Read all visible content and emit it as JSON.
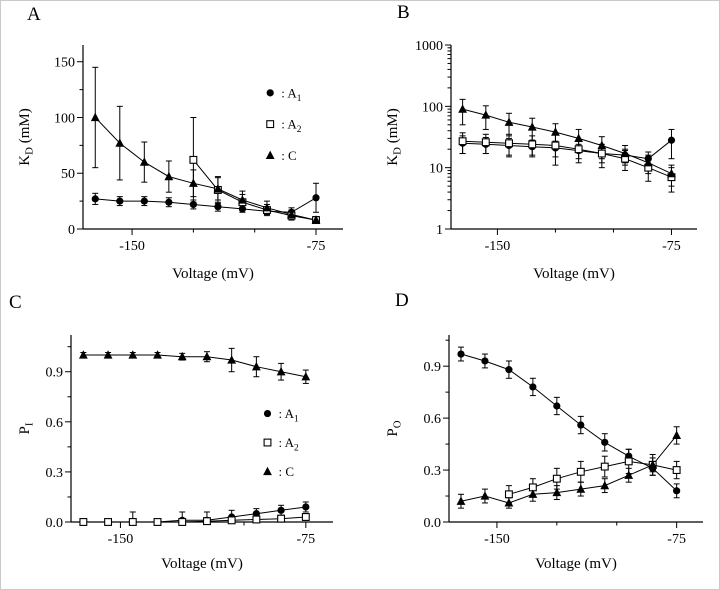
{
  "chart_data": [
    {
      "panel": "A",
      "type": "line",
      "xlabel": "Voltage (mV)",
      "ylabel_segments": [
        {
          "t": "K"
        },
        {
          "t": "D",
          "sub": true
        },
        {
          "t": " (mM)"
        }
      ],
      "yscale": "linear",
      "xlim": [
        -170,
        -64
      ],
      "ylim": [
        0,
        165
      ],
      "xticks": [
        -150,
        -75
      ],
      "xtick_labels": [
        "-150",
        "-75"
      ],
      "xminor": [
        -125,
        -100
      ],
      "yticks": [
        0,
        50,
        100,
        150
      ],
      "ytick_labels": [
        "0",
        "50",
        "100",
        "150"
      ],
      "yminor": [
        25,
        75,
        125
      ],
      "series": [
        {
          "name": "A1",
          "marker": "filled-circle",
          "x": [
            -165,
            -155,
            -145,
            -135,
            -125,
            -115,
            -105,
            -95,
            -85,
            -75
          ],
          "y": [
            27,
            25,
            25,
            24,
            22,
            20,
            18,
            16,
            15,
            28
          ],
          "err": [
            5,
            4,
            4,
            4,
            4,
            4,
            3,
            3,
            4,
            13
          ]
        },
        {
          "name": "A2",
          "marker": "open-square",
          "x": [
            -125,
            -115,
            -105,
            -95,
            -85,
            -75
          ],
          "y": [
            62,
            35,
            24,
            17,
            12,
            8
          ],
          "err": [
            38,
            12,
            7,
            5,
            4,
            3
          ]
        },
        {
          "name": "C",
          "marker": "filled-triangle",
          "x": [
            -165,
            -155,
            -145,
            -135,
            -125,
            -115,
            -105,
            -95,
            -85,
            -75
          ],
          "y": [
            100,
            77,
            60,
            47,
            41,
            36,
            26,
            19,
            13,
            8
          ],
          "err": [
            45,
            33,
            18,
            14,
            12,
            10,
            8,
            6,
            4,
            3
          ]
        }
      ],
      "legend_items": [
        {
          "marker": "filled-circle",
          "label_segments": [
            {
              "t": ": A"
            },
            {
              "t": "1",
              "sub": true
            }
          ]
        },
        {
          "marker": "open-square",
          "label_segments": [
            {
              "t": ": A"
            },
            {
              "t": "2",
              "sub": true
            }
          ]
        },
        {
          "marker": "filled-triangle",
          "label_segments": [
            {
              "t": ": C"
            }
          ]
        }
      ]
    },
    {
      "panel": "B",
      "type": "line",
      "xlabel": "Voltage (mV)",
      "ylabel_segments": [
        {
          "t": "K"
        },
        {
          "t": "D",
          "sub": true
        },
        {
          "t": " (mM)"
        }
      ],
      "yscale": "log",
      "xlim": [
        -170,
        -64
      ],
      "ylim": [
        1,
        1000
      ],
      "xticks": [
        -150,
        -75
      ],
      "xtick_labels": [
        "-150",
        "-75"
      ],
      "xminor": [
        -125,
        -100
      ],
      "yticks": [
        1,
        10,
        100,
        1000
      ],
      "ytick_labels": [
        "1",
        "10",
        "100",
        "1000"
      ],
      "yminor": [],
      "series": [
        {
          "name": "A1",
          "marker": "filled-circle",
          "x": [
            -165,
            -155,
            -145,
            -135,
            -125,
            -115,
            -105,
            -95,
            -85,
            -75
          ],
          "y": [
            25,
            24,
            23,
            22,
            21,
            19,
            17,
            16,
            14,
            28
          ],
          "err": [
            8,
            7,
            7,
            6,
            6,
            5,
            5,
            4,
            4,
            14
          ]
        },
        {
          "name": "A2",
          "marker": "open-square",
          "x": [
            -165,
            -155,
            -145,
            -135,
            -125,
            -115,
            -105,
            -95,
            -85,
            -75
          ],
          "y": [
            27,
            26,
            25,
            24,
            23,
            20,
            17,
            14,
            10,
            7
          ],
          "err": [
            10,
            9,
            10,
            9,
            12,
            8,
            7,
            5,
            4,
            3
          ]
        },
        {
          "name": "C",
          "marker": "filled-triangle",
          "x": [
            -165,
            -155,
            -145,
            -135,
            -125,
            -115,
            -105,
            -95,
            -85,
            -75
          ],
          "y": [
            90,
            72,
            55,
            46,
            38,
            30,
            23,
            17,
            12,
            8
          ],
          "err": [
            40,
            30,
            22,
            18,
            14,
            12,
            9,
            6,
            4,
            3
          ]
        }
      ]
    },
    {
      "panel": "C",
      "type": "line",
      "xlabel": "Voltage (mV)",
      "ylabel_segments": [
        {
          "t": "P"
        },
        {
          "t": "I",
          "sub": true
        }
      ],
      "yscale": "linear",
      "xlim": [
        -170,
        -64
      ],
      "ylim": [
        0,
        1.12
      ],
      "xticks": [
        -150,
        -75
      ],
      "xtick_labels": [
        "-150",
        "-75"
      ],
      "xminor": [
        -125,
        -100
      ],
      "yticks": [
        0,
        0.3,
        0.6,
        0.9
      ],
      "ytick_labels": [
        "0.0",
        "0.3",
        "0.6",
        "0.9"
      ],
      "yminor": [
        0.15,
        0.45,
        0.75,
        1.05
      ],
      "series": [
        {
          "name": "A1",
          "marker": "filled-circle",
          "x": [
            -165,
            -155,
            -145,
            -135,
            -125,
            -115,
            -105,
            -95,
            -85,
            -75
          ],
          "y": [
            0.0,
            0.0,
            0.0,
            0.0,
            0.01,
            0.01,
            0.03,
            0.05,
            0.07,
            0.09
          ],
          "err": [
            0.01,
            0.01,
            0.06,
            0.01,
            0.05,
            0.05,
            0.04,
            0.03,
            0.03,
            0.03
          ]
        },
        {
          "name": "A2",
          "marker": "open-square",
          "x": [
            -165,
            -155,
            -145,
            -135,
            -125,
            -115,
            -105,
            -95,
            -85,
            -75
          ],
          "y": [
            0.0,
            0.0,
            0.0,
            0.0,
            0.0,
            0.005,
            0.01,
            0.015,
            0.02,
            0.03
          ],
          "err": [
            0.005,
            0.005,
            0.005,
            0.005,
            0.01,
            0.02,
            0.02,
            0.02,
            0.02,
            0.02
          ]
        },
        {
          "name": "C",
          "marker": "filled-triangle",
          "x": [
            -165,
            -155,
            -145,
            -135,
            -125,
            -115,
            -105,
            -95,
            -85,
            -75
          ],
          "y": [
            1.0,
            1.0,
            1.0,
            1.0,
            0.99,
            0.99,
            0.97,
            0.93,
            0.9,
            0.87
          ],
          "err": [
            0.015,
            0.015,
            0.015,
            0.015,
            0.02,
            0.03,
            0.07,
            0.06,
            0.05,
            0.04
          ]
        }
      ],
      "legend_items": [
        {
          "marker": "filled-circle",
          "label_segments": [
            {
              "t": ": A"
            },
            {
              "t": "1",
              "sub": true
            }
          ]
        },
        {
          "marker": "open-square",
          "label_segments": [
            {
              "t": ": A"
            },
            {
              "t": "2",
              "sub": true
            }
          ]
        },
        {
          "marker": "filled-triangle",
          "label_segments": [
            {
              "t": ": C"
            }
          ]
        }
      ]
    },
    {
      "panel": "D",
      "type": "line",
      "xlabel": "Voltage (mV)",
      "ylabel_segments": [
        {
          "t": "P"
        },
        {
          "t": "O",
          "sub": true
        }
      ],
      "yscale": "linear",
      "xlim": [
        -170,
        -64
      ],
      "ylim": [
        0,
        1.08
      ],
      "xticks": [
        -150,
        -75
      ],
      "xtick_labels": [
        "-150",
        "-75"
      ],
      "xminor": [
        -125,
        -100
      ],
      "yticks": [
        0,
        0.3,
        0.6,
        0.9
      ],
      "ytick_labels": [
        "0.0",
        "0.3",
        "0.6",
        "0.9"
      ],
      "yminor": [
        0.15,
        0.45,
        0.75,
        1.05
      ],
      "series": [
        {
          "name": "A1",
          "marker": "filled-circle",
          "x": [
            -165,
            -155,
            -145,
            -135,
            -125,
            -115,
            -105,
            -95,
            -85,
            -75
          ],
          "y": [
            0.97,
            0.93,
            0.88,
            0.78,
            0.67,
            0.56,
            0.46,
            0.38,
            0.31,
            0.18
          ],
          "err": [
            0.04,
            0.04,
            0.05,
            0.05,
            0.05,
            0.05,
            0.05,
            0.04,
            0.04,
            0.04
          ]
        },
        {
          "name": "A2",
          "marker": "open-square",
          "x": [
            -145,
            -135,
            -125,
            -115,
            -105,
            -95,
            -85,
            -75
          ],
          "y": [
            0.16,
            0.2,
            0.25,
            0.29,
            0.32,
            0.35,
            0.33,
            0.3
          ],
          "err": [
            0.05,
            0.05,
            0.06,
            0.06,
            0.06,
            0.07,
            0.06,
            0.05
          ]
        },
        {
          "name": "C",
          "marker": "filled-triangle",
          "x": [
            -165,
            -155,
            -145,
            -135,
            -125,
            -115,
            -105,
            -95,
            -85,
            -75
          ],
          "y": [
            0.12,
            0.15,
            0.11,
            0.16,
            0.17,
            0.19,
            0.21,
            0.27,
            0.33,
            0.5
          ],
          "err": [
            0.04,
            0.04,
            0.03,
            0.04,
            0.04,
            0.04,
            0.04,
            0.04,
            0.04,
            0.05
          ]
        }
      ]
    }
  ]
}
